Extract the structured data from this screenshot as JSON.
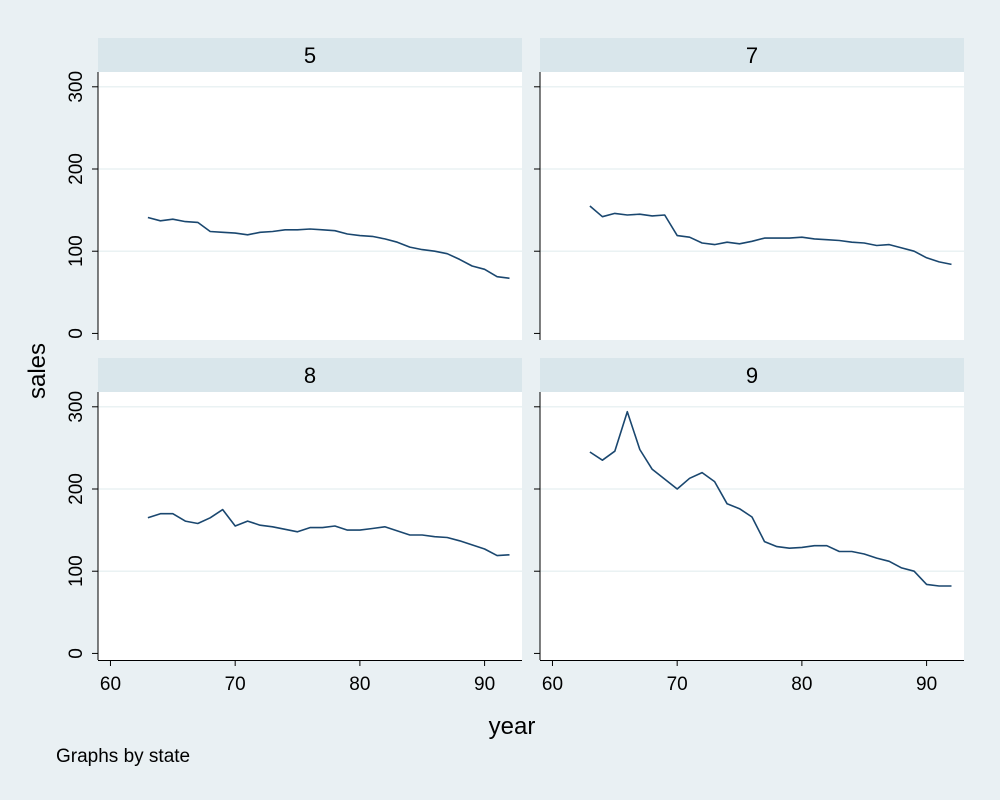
{
  "chart_data": {
    "type": "line",
    "layout": "2x2 small multiples",
    "xlabel": "year",
    "ylabel": "sales",
    "note": "Graphs by state",
    "xlim": [
      59,
      93
    ],
    "ylim": [
      -8,
      318
    ],
    "xticks": [
      60,
      70,
      80,
      90
    ],
    "yticks": [
      0,
      100,
      200,
      300
    ],
    "grid": "horizontal",
    "colors": {
      "line": "#1a476f",
      "page_background": "#e9f0f3",
      "panel_background": "#ffffff",
      "strip": "#d9e6eb",
      "grid": "#eaf2f3"
    },
    "panels": [
      {
        "label": "5",
        "series": [
          {
            "x": [
              63,
              64,
              65,
              66,
              67,
              68,
              69,
              70,
              71,
              72,
              73,
              74,
              75,
              76,
              77,
              78,
              79,
              80,
              81,
              82,
              83,
              84,
              85,
              86,
              87,
              88,
              89,
              90,
              91,
              92
            ],
            "y": [
              141,
              137,
              139,
              136,
              135,
              124,
              123,
              122,
              120,
              123,
              124,
              126,
              126,
              127,
              126,
              125,
              121,
              119,
              118,
              115,
              111,
              105,
              102,
              100,
              97,
              90,
              82,
              78,
              69,
              67
            ]
          }
        ]
      },
      {
        "label": "7",
        "series": [
          {
            "x": [
              63,
              64,
              65,
              66,
              67,
              68,
              69,
              70,
              71,
              72,
              73,
              74,
              75,
              76,
              77,
              78,
              79,
              80,
              81,
              82,
              83,
              84,
              85,
              86,
              87,
              88,
              89,
              90,
              91,
              92
            ],
            "y": [
              155,
              142,
              146,
              144,
              145,
              143,
              144,
              119,
              117,
              110,
              108,
              111,
              109,
              112,
              116,
              116,
              116,
              117,
              115,
              114,
              113,
              111,
              110,
              107,
              108,
              104,
              100,
              92,
              87,
              84
            ]
          }
        ]
      },
      {
        "label": "8",
        "series": [
          {
            "x": [
              63,
              64,
              65,
              66,
              67,
              68,
              69,
              70,
              71,
              72,
              73,
              74,
              75,
              76,
              77,
              78,
              79,
              80,
              81,
              82,
              83,
              84,
              85,
              86,
              87,
              88,
              89,
              90,
              91,
              92
            ],
            "y": [
              165,
              170,
              170,
              161,
              158,
              165,
              175,
              155,
              161,
              156,
              154,
              151,
              148,
              153,
              153,
              155,
              150,
              150,
              152,
              154,
              149,
              144,
              144,
              142,
              141,
              137,
              132,
              127,
              119,
              120
            ]
          }
        ]
      },
      {
        "label": "9",
        "series": [
          {
            "x": [
              63,
              64,
              65,
              66,
              67,
              68,
              69,
              70,
              71,
              72,
              73,
              74,
              75,
              76,
              77,
              78,
              79,
              80,
              81,
              82,
              83,
              84,
              85,
              86,
              87,
              88,
              89,
              90,
              91,
              92
            ],
            "y": [
              245,
              235,
              246,
              294,
              248,
              224,
              212,
              200,
              213,
              220,
              209,
              182,
              176,
              166,
              136,
              130,
              128,
              129,
              131,
              131,
              124,
              124,
              121,
              116,
              112,
              104,
              100,
              84,
              82,
              82
            ]
          }
        ]
      }
    ]
  }
}
